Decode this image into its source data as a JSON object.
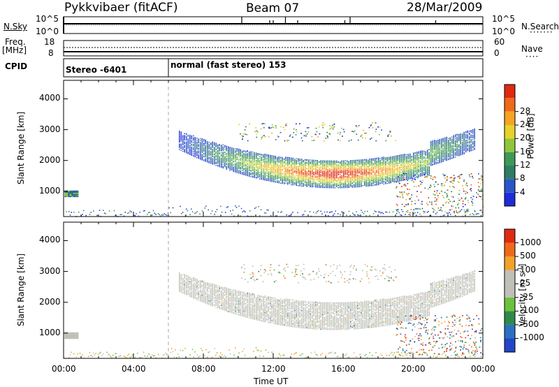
{
  "header": {
    "station": "Pykkvibaer (fitACF)",
    "beam": "Beam 07",
    "date": "28/Mar/2009"
  },
  "top_panels": {
    "nsky_label": "N.Sky",
    "nsky_ticks": [
      "10^5",
      "10^0"
    ],
    "nsearch_label": "N.Search",
    "nsearch_ticks": [
      "10^5",
      "10^0"
    ],
    "freq_label": "Freq.",
    "freq_unit": "[MHz]",
    "freq_ticks": [
      "18",
      "8"
    ],
    "nave_label": "Nave",
    "nave_ticks": [
      "60",
      "0"
    ],
    "cpid_label": "CPID",
    "cpid_segments": [
      "Stereo -6401",
      "normal (fast stereo) 153"
    ]
  },
  "chart_data": [
    {
      "type": "heatmap",
      "name": "power",
      "ylabel": "Slant Range [km]",
      "xlabel": "",
      "x_ticks": [
        "00:00",
        "04:00",
        "08:00",
        "12:00",
        "16:00",
        "20:00",
        "00:00"
      ],
      "x_range_hours": [
        0,
        24
      ],
      "y_ticks": [
        1000,
        2000,
        3000,
        4000
      ],
      "ylim": [
        180,
        4600
      ],
      "colorbar": {
        "label": "Power [dB]",
        "ticks": [
          "4",
          "8",
          "12",
          "16",
          "20",
          "24",
          "28"
        ],
        "range": [
          0,
          32
        ],
        "colors": [
          "#1f2bd6",
          "#2a55c8",
          "#2f7d63",
          "#3d9a56",
          "#8fc63c",
          "#e6d22a",
          "#f5a424",
          "#ee6a18",
          "#e02a12"
        ]
      }
    },
    {
      "type": "heatmap",
      "name": "velocity",
      "ylabel": "Slant Range [km]",
      "xlabel": "Time UT",
      "x_ticks": [
        "00:00",
        "04:00",
        "08:00",
        "12:00",
        "16:00",
        "20:00",
        "00:00"
      ],
      "x_range_hours": [
        0,
        24
      ],
      "y_ticks": [
        1000,
        2000,
        3000,
        4000
      ],
      "ylim": [
        180,
        4600
      ],
      "colorbar": {
        "label": "Velocity [m s",
        "label_exp": "-1",
        "label_close": "]",
        "ticks": [
          "1000",
          "500",
          "100",
          "25",
          "-25",
          "-100",
          "-500",
          "-1000"
        ],
        "colors": [
          "#2346c8",
          "#2a72c0",
          "#2f8a4a",
          "#6cc23c",
          "#c0c0b8",
          "#c0c0b8",
          "#f2a22a",
          "#ef6a18",
          "#e02a12"
        ]
      }
    }
  ]
}
